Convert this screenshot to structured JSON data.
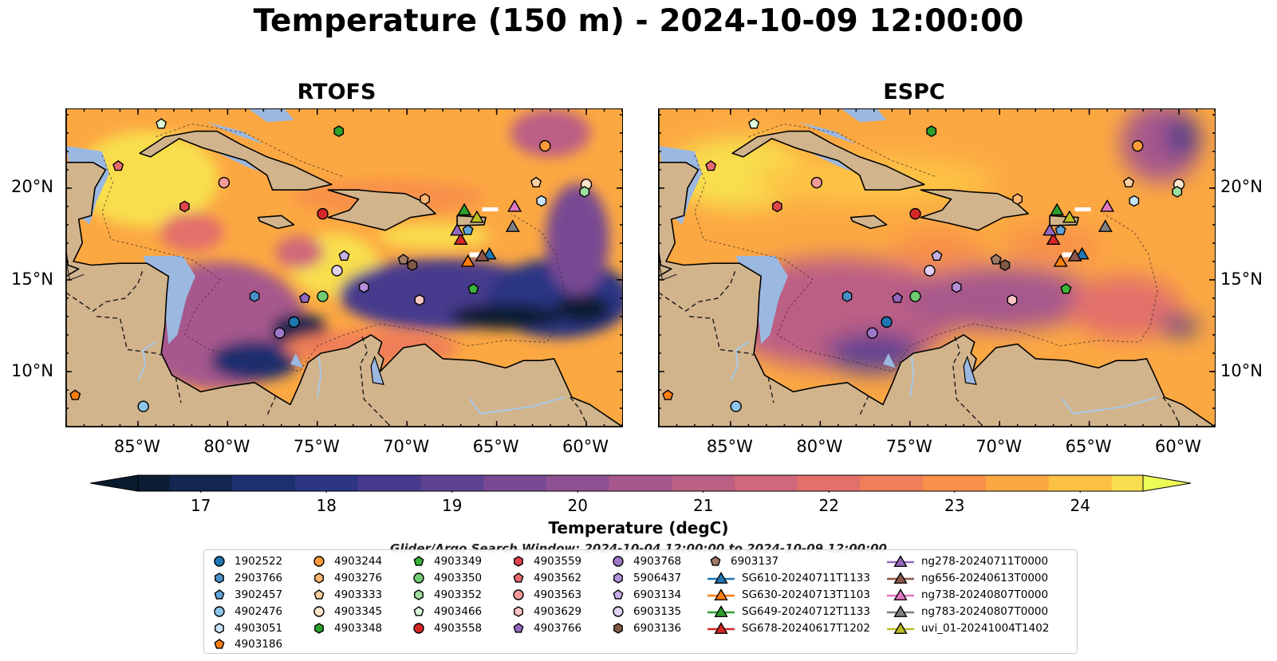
{
  "figure": {
    "title": "Temperature (150 m) - 2024-10-09 12:00:00"
  },
  "panels": [
    {
      "title": "RTOFS",
      "variant": "rtofs"
    },
    {
      "title": "ESPC",
      "variant": "espc"
    }
  ],
  "axes": {
    "lon_ticks": [
      "85°W",
      "80°W",
      "75°W",
      "70°W",
      "65°W",
      "60°W"
    ],
    "lat_ticks": [
      "20°N",
      "15°N",
      "10°N"
    ],
    "lon_range": [
      -89,
      -58
    ],
    "lat_range": [
      7,
      24.3
    ]
  },
  "colorbar": {
    "label": "Temperature (degC)",
    "ticks": [
      "17",
      "18",
      "19",
      "20",
      "21",
      "22",
      "23",
      "24"
    ],
    "min": 16.5,
    "max": 24.5,
    "extend": "both",
    "colors": [
      "#0c1d33",
      "#14254f",
      "#1d2f6e",
      "#2c3683",
      "#473a8d",
      "#5f4292",
      "#784a93",
      "#8f5191",
      "#a6588c",
      "#bc5f85",
      "#d0677a",
      "#e3716b",
      "#f07e58",
      "#f8914a",
      "#fca842",
      "#fdc244",
      "#f8de4e"
    ],
    "extend_min_color": "#0a1a2e",
    "extend_max_color": "#eefc58"
  },
  "search_window": "Glider/Argo Search Window: 2024-10-04 12:00:00 to 2024-10-09 12:00:00",
  "colors": {
    "land": "#d2b48c",
    "shelf": "#9bb8e0",
    "river": "#a8c8e8"
  },
  "floats": [
    {
      "id": "1902522",
      "marker": "circle",
      "color": "#1f77b4",
      "lon": -76.3,
      "lat": 12.7
    },
    {
      "id": "2903766",
      "marker": "hexagon",
      "color": "#4a90c8",
      "lon": -78.5,
      "lat": 14.1
    },
    {
      "id": "3902457",
      "marker": "pentagon",
      "color": "#5fa3d9",
      "lon": -66.6,
      "lat": 17.7
    },
    {
      "id": "4902476",
      "marker": "circle",
      "color": "#8ec5ea",
      "lon": -84.7,
      "lat": 8.1
    },
    {
      "id": "4903051",
      "marker": "hexagon",
      "color": "#c6e4f7",
      "lon": -62.5,
      "lat": 19.3
    },
    {
      "id": "4903186",
      "marker": "pentagon",
      "color": "#ff7f0e",
      "lon": -88.5,
      "lat": 8.7
    },
    {
      "id": "4903244",
      "marker": "circle",
      "color": "#ff9a3c",
      "lon": -62.3,
      "lat": 22.3
    },
    {
      "id": "4903276",
      "marker": "hexagon",
      "color": "#ffb470",
      "lon": -69.0,
      "lat": 19.4
    },
    {
      "id": "4903333",
      "marker": "pentagon",
      "color": "#ffd09f",
      "lon": -62.8,
      "lat": 20.3
    },
    {
      "id": "4903345",
      "marker": "circle",
      "color": "#ffe6cc",
      "lon": -60.0,
      "lat": 20.2
    },
    {
      "id": "4903348",
      "marker": "hexagon",
      "color": "#2ca02c",
      "lon": -73.8,
      "lat": 23.1
    },
    {
      "id": "4903349",
      "marker": "pentagon",
      "color": "#3cb43c",
      "lon": -66.3,
      "lat": 14.5
    },
    {
      "id": "4903350",
      "marker": "circle",
      "color": "#70cc70",
      "lon": -74.7,
      "lat": 14.1
    },
    {
      "id": "4903352",
      "marker": "hexagon",
      "color": "#9fdf9f",
      "lon": -60.1,
      "lat": 19.8
    },
    {
      "id": "4903466",
      "marker": "pentagon",
      "color": "#ddfadb",
      "lon": -83.7,
      "lat": 23.5
    },
    {
      "id": "4903558",
      "marker": "circle",
      "color": "#d62728",
      "lon": -74.7,
      "lat": 18.6
    },
    {
      "id": "4903559",
      "marker": "hexagon",
      "color": "#e0444a",
      "lon": -82.4,
      "lat": 19.0
    },
    {
      "id": "4903562",
      "marker": "pentagon",
      "color": "#ea6a70",
      "lon": -86.1,
      "lat": 21.2
    },
    {
      "id": "4903563",
      "marker": "circle",
      "color": "#f29a9a",
      "lon": -80.2,
      "lat": 20.3
    },
    {
      "id": "4903629",
      "marker": "hexagon",
      "color": "#fbc5c5",
      "lon": -69.3,
      "lat": 13.9
    },
    {
      "id": "4903766",
      "marker": "pentagon",
      "color": "#9467bd",
      "lon": -75.7,
      "lat": 14.0
    },
    {
      "id": "4903768",
      "marker": "circle",
      "color": "#9e77c7",
      "lon": -77.1,
      "lat": 12.1
    },
    {
      "id": "5906437",
      "marker": "hexagon",
      "color": "#b390d8",
      "lon": -72.4,
      "lat": 14.6
    },
    {
      "id": "6903134",
      "marker": "pentagon",
      "color": "#c9aee6",
      "lon": -73.5,
      "lat": 16.3
    },
    {
      "id": "6903135",
      "marker": "circle",
      "color": "#e0d0f3",
      "lon": -73.9,
      "lat": 15.5
    },
    {
      "id": "6903136",
      "marker": "hexagon",
      "color": "#7f5a47",
      "lon": -69.7,
      "lat": 15.8
    },
    {
      "id": "6903137",
      "marker": "pentagon",
      "color": "#a07a65",
      "lon": -70.2,
      "lat": 16.1
    }
  ],
  "gliders": [
    {
      "id": "SG610-20240711T1133",
      "color": "#1f77b4",
      "lon": -65.4,
      "lat": 16.4
    },
    {
      "id": "SG630-20240713T1103",
      "color": "#ff7f0e",
      "lon": -66.6,
      "lat": 16.0
    },
    {
      "id": "SG649-20240712T1133",
      "color": "#2ca02c",
      "lon": -66.8,
      "lat": 18.8
    },
    {
      "id": "SG678-20240617T1202",
      "color": "#d62728",
      "lon": -67.0,
      "lat": 17.2
    },
    {
      "id": "ng278-20240711T0000",
      "color": "#9467bd",
      "lon": -67.2,
      "lat": 17.7
    },
    {
      "id": "ng656-20240613T0000",
      "color": "#8c564b",
      "lon": -65.8,
      "lat": 16.3
    },
    {
      "id": "ng738-20240807T0000",
      "color": "#e377c2",
      "lon": -64.0,
      "lat": 19.0
    },
    {
      "id": "ng783-20240807T0000",
      "color": "#7f7f7f",
      "lon": -64.1,
      "lat": 17.9
    },
    {
      "id": "uvi_01-20241004T1402",
      "color": "#bcbd22",
      "lon": -66.1,
      "lat": 18.4
    }
  ]
}
